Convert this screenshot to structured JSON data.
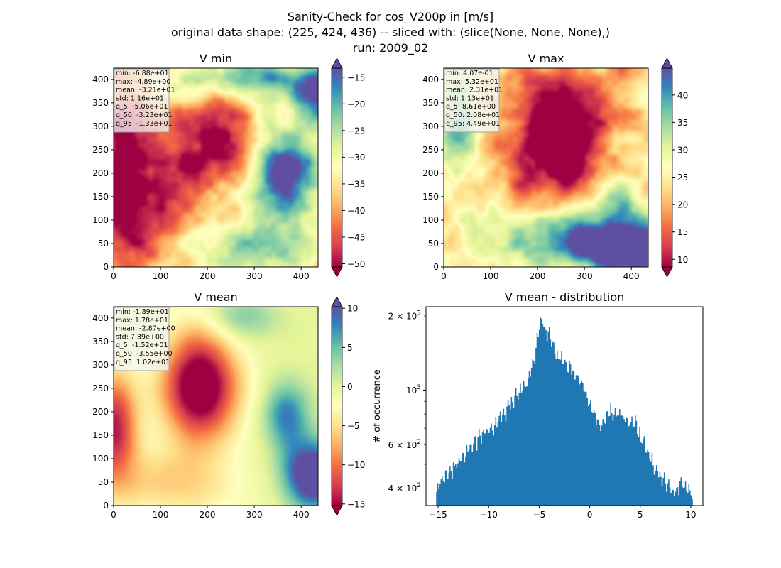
{
  "suptitle": [
    "Sanity-Check for cos_V200p in [m/s]",
    "original data shape: (225, 424, 436) -- sliced with: (slice(None, None, None),)",
    "run: 2009_02"
  ],
  "colors": {
    "spectral": [
      "#9e0142",
      "#d53e4f",
      "#f46d43",
      "#fdae61",
      "#fee08b",
      "#ffffbf",
      "#e6f598",
      "#abdda4",
      "#66c2a5",
      "#3288bd",
      "#5e4fa2"
    ],
    "hist_bar": "#1f77b4",
    "stats_box_bg": "rgba(245,245,245,0.75)"
  },
  "panels": [
    {
      "title": "V min",
      "xticks": [
        "0",
        "100",
        "200",
        "300",
        "400"
      ],
      "yticks": [
        "0",
        "50",
        "100",
        "150",
        "200",
        "250",
        "300",
        "350",
        "400"
      ],
      "stats": [
        "min: -6.88e+01",
        "max: -4.89e+00",
        "mean: -3.21e+01",
        "std: 1.16e+01",
        "q_5: -5.06e+01",
        "q_50: -3.23e+01",
        "q_95: -1.33e+01"
      ],
      "colorbar": {
        "vmin": -50.6,
        "vmax": -13.3,
        "extend": "both",
        "ticks": [
          -50,
          -45,
          -40,
          -35,
          -30,
          -25,
          -20,
          -15
        ],
        "tick_labels": [
          "−50",
          "−45",
          "−40",
          "−35",
          "−30",
          "−25",
          "−20",
          "−15"
        ]
      }
    },
    {
      "title": "V max",
      "xticks": [
        "0",
        "100",
        "200",
        "300",
        "400"
      ],
      "yticks": [
        "0",
        "50",
        "100",
        "150",
        "200",
        "250",
        "300",
        "350",
        "400"
      ],
      "stats": [
        "min: 4.07e-01",
        "max: 5.32e+01",
        "mean: 2.31e+01",
        "std: 1.13e+01",
        "q_5: 8.61e+00",
        "q_50: 2.08e+01",
        "q_95: 4.49e+01"
      ],
      "colorbar": {
        "vmin": 8.61,
        "vmax": 44.9,
        "extend": "both",
        "ticks": [
          10,
          15,
          20,
          25,
          30,
          35,
          40
        ],
        "tick_labels": [
          "10",
          "15",
          "20",
          "25",
          "30",
          "35",
          "40"
        ]
      }
    },
    {
      "title": "V mean",
      "xticks": [
        "0",
        "100",
        "200",
        "300",
        "400"
      ],
      "yticks": [
        "0",
        "50",
        "100",
        "150",
        "200",
        "250",
        "300",
        "350",
        "400"
      ],
      "stats": [
        "min: -1.89e+01",
        "max: 1.78e+01",
        "mean: -2.87e+00",
        "std: 7.39e+00",
        "q_5: -1.52e+01",
        "q_50: -3.55e+00",
        "q_95: 1.02e+01"
      ],
      "colorbar": {
        "vmin": -15.2,
        "vmax": 10.2,
        "extend": "both",
        "ticks": [
          -15,
          -10,
          -5,
          0,
          5,
          10
        ],
        "tick_labels": [
          "−15",
          "−10",
          "−5",
          "0",
          "5",
          "10"
        ]
      }
    }
  ],
  "histogram": {
    "title": "V mean - distribution",
    "ylabel": "# of occurrence",
    "yscale": "log",
    "xticks": [
      -15,
      -10,
      -5,
      0,
      5,
      10
    ],
    "xtick_labels": [
      "−15",
      "−10",
      "−5",
      "0",
      "5",
      "10"
    ],
    "yticks": [
      400,
      600,
      1000,
      2000
    ],
    "ytick_bases": [
      "4 × 10",
      "6 × 10",
      "10",
      "2 × 10"
    ],
    "ytick_exps": [
      "2",
      "2",
      "3",
      "3"
    ]
  },
  "chart_data": [
    {
      "type": "heatmap",
      "title": "V min",
      "xlim": [
        0,
        436
      ],
      "ylim": [
        0,
        424
      ],
      "colormap": "Spectral",
      "colorbar_range": [
        -50.6,
        -13.3
      ]
    },
    {
      "type": "heatmap",
      "title": "V max",
      "xlim": [
        0,
        436
      ],
      "ylim": [
        0,
        424
      ],
      "colormap": "Spectral",
      "colorbar_range": [
        8.61,
        44.9
      ]
    },
    {
      "type": "heatmap",
      "title": "V mean",
      "xlim": [
        0,
        436
      ],
      "ylim": [
        0,
        424
      ],
      "colormap": "Spectral",
      "colorbar_range": [
        -15.2,
        10.2
      ]
    },
    {
      "type": "bar",
      "title": "V mean - distribution",
      "ylabel": "# of occurrence",
      "yscale": "log",
      "xlim": [
        -16.2,
        11.2
      ],
      "ylim": [
        340,
        2180
      ],
      "bin_range": [
        -15.2,
        10.2
      ],
      "anchors_x": [
        -15.2,
        -14.5,
        -13.5,
        -12.5,
        -11.5,
        -10.5,
        -9.5,
        -8.5,
        -7.5,
        -6.5,
        -6.0,
        -5.5,
        -5.0,
        -4.7,
        -4.3,
        -4.0,
        -3.5,
        -3.0,
        -2.5,
        -2.0,
        -1.5,
        -1.0,
        -0.5,
        0.0,
        0.5,
        1.0,
        1.5,
        2.0,
        2.5,
        3.0,
        3.5,
        4.0,
        4.5,
        5.0,
        5.5,
        6.0,
        6.5,
        7.0,
        7.5,
        8.0,
        8.5,
        9.0,
        9.5,
        10.2
      ],
      "anchors_y": [
        400,
        450,
        480,
        540,
        610,
        660,
        710,
        800,
        920,
        1020,
        1130,
        1310,
        1790,
        1900,
        1730,
        1680,
        1450,
        1350,
        1320,
        1230,
        1180,
        1110,
        1000,
        880,
        780,
        700,
        790,
        830,
        790,
        800,
        760,
        730,
        740,
        640,
        590,
        540,
        470,
        450,
        420,
        390,
        390,
        420,
        400,
        380
      ]
    }
  ]
}
